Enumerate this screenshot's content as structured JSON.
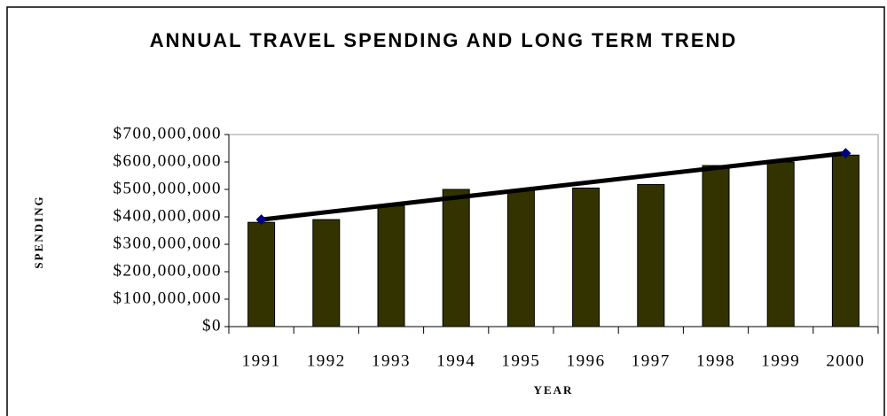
{
  "chart_data": {
    "type": "bar",
    "title": "ANNUAL TRAVEL SPENDING AND LONG TERM TREND",
    "x_label": "YEAR",
    "y_label": "SPENDING",
    "categories": [
      "1991",
      "1992",
      "1993",
      "1994",
      "1995",
      "1996",
      "1997",
      "1998",
      "1999",
      "2000"
    ],
    "values": [
      380000000,
      390000000,
      440000000,
      500000000,
      497000000,
      505000000,
      518000000,
      587000000,
      600000000,
      625000000
    ],
    "color": "#333300",
    "trend": {
      "color": "#000000",
      "marker_color": "#000080",
      "values": [
        390000000,
        632000000
      ]
    },
    "ylim": [
      0,
      700000000
    ],
    "yticks": [
      {
        "value": 0,
        "label": "$0"
      },
      {
        "value": 100000000,
        "label": "$100,000,000"
      },
      {
        "value": 200000000,
        "label": "$200,000,000"
      },
      {
        "value": 300000000,
        "label": "$300,000,000"
      },
      {
        "value": 400000000,
        "label": "$400,000,000"
      },
      {
        "value": 500000000,
        "label": "$500,000,000"
      },
      {
        "value": 600000000,
        "label": "$600,000,000"
      },
      {
        "value": 700000000,
        "label": "$700,000,000"
      }
    ],
    "grid": false
  }
}
